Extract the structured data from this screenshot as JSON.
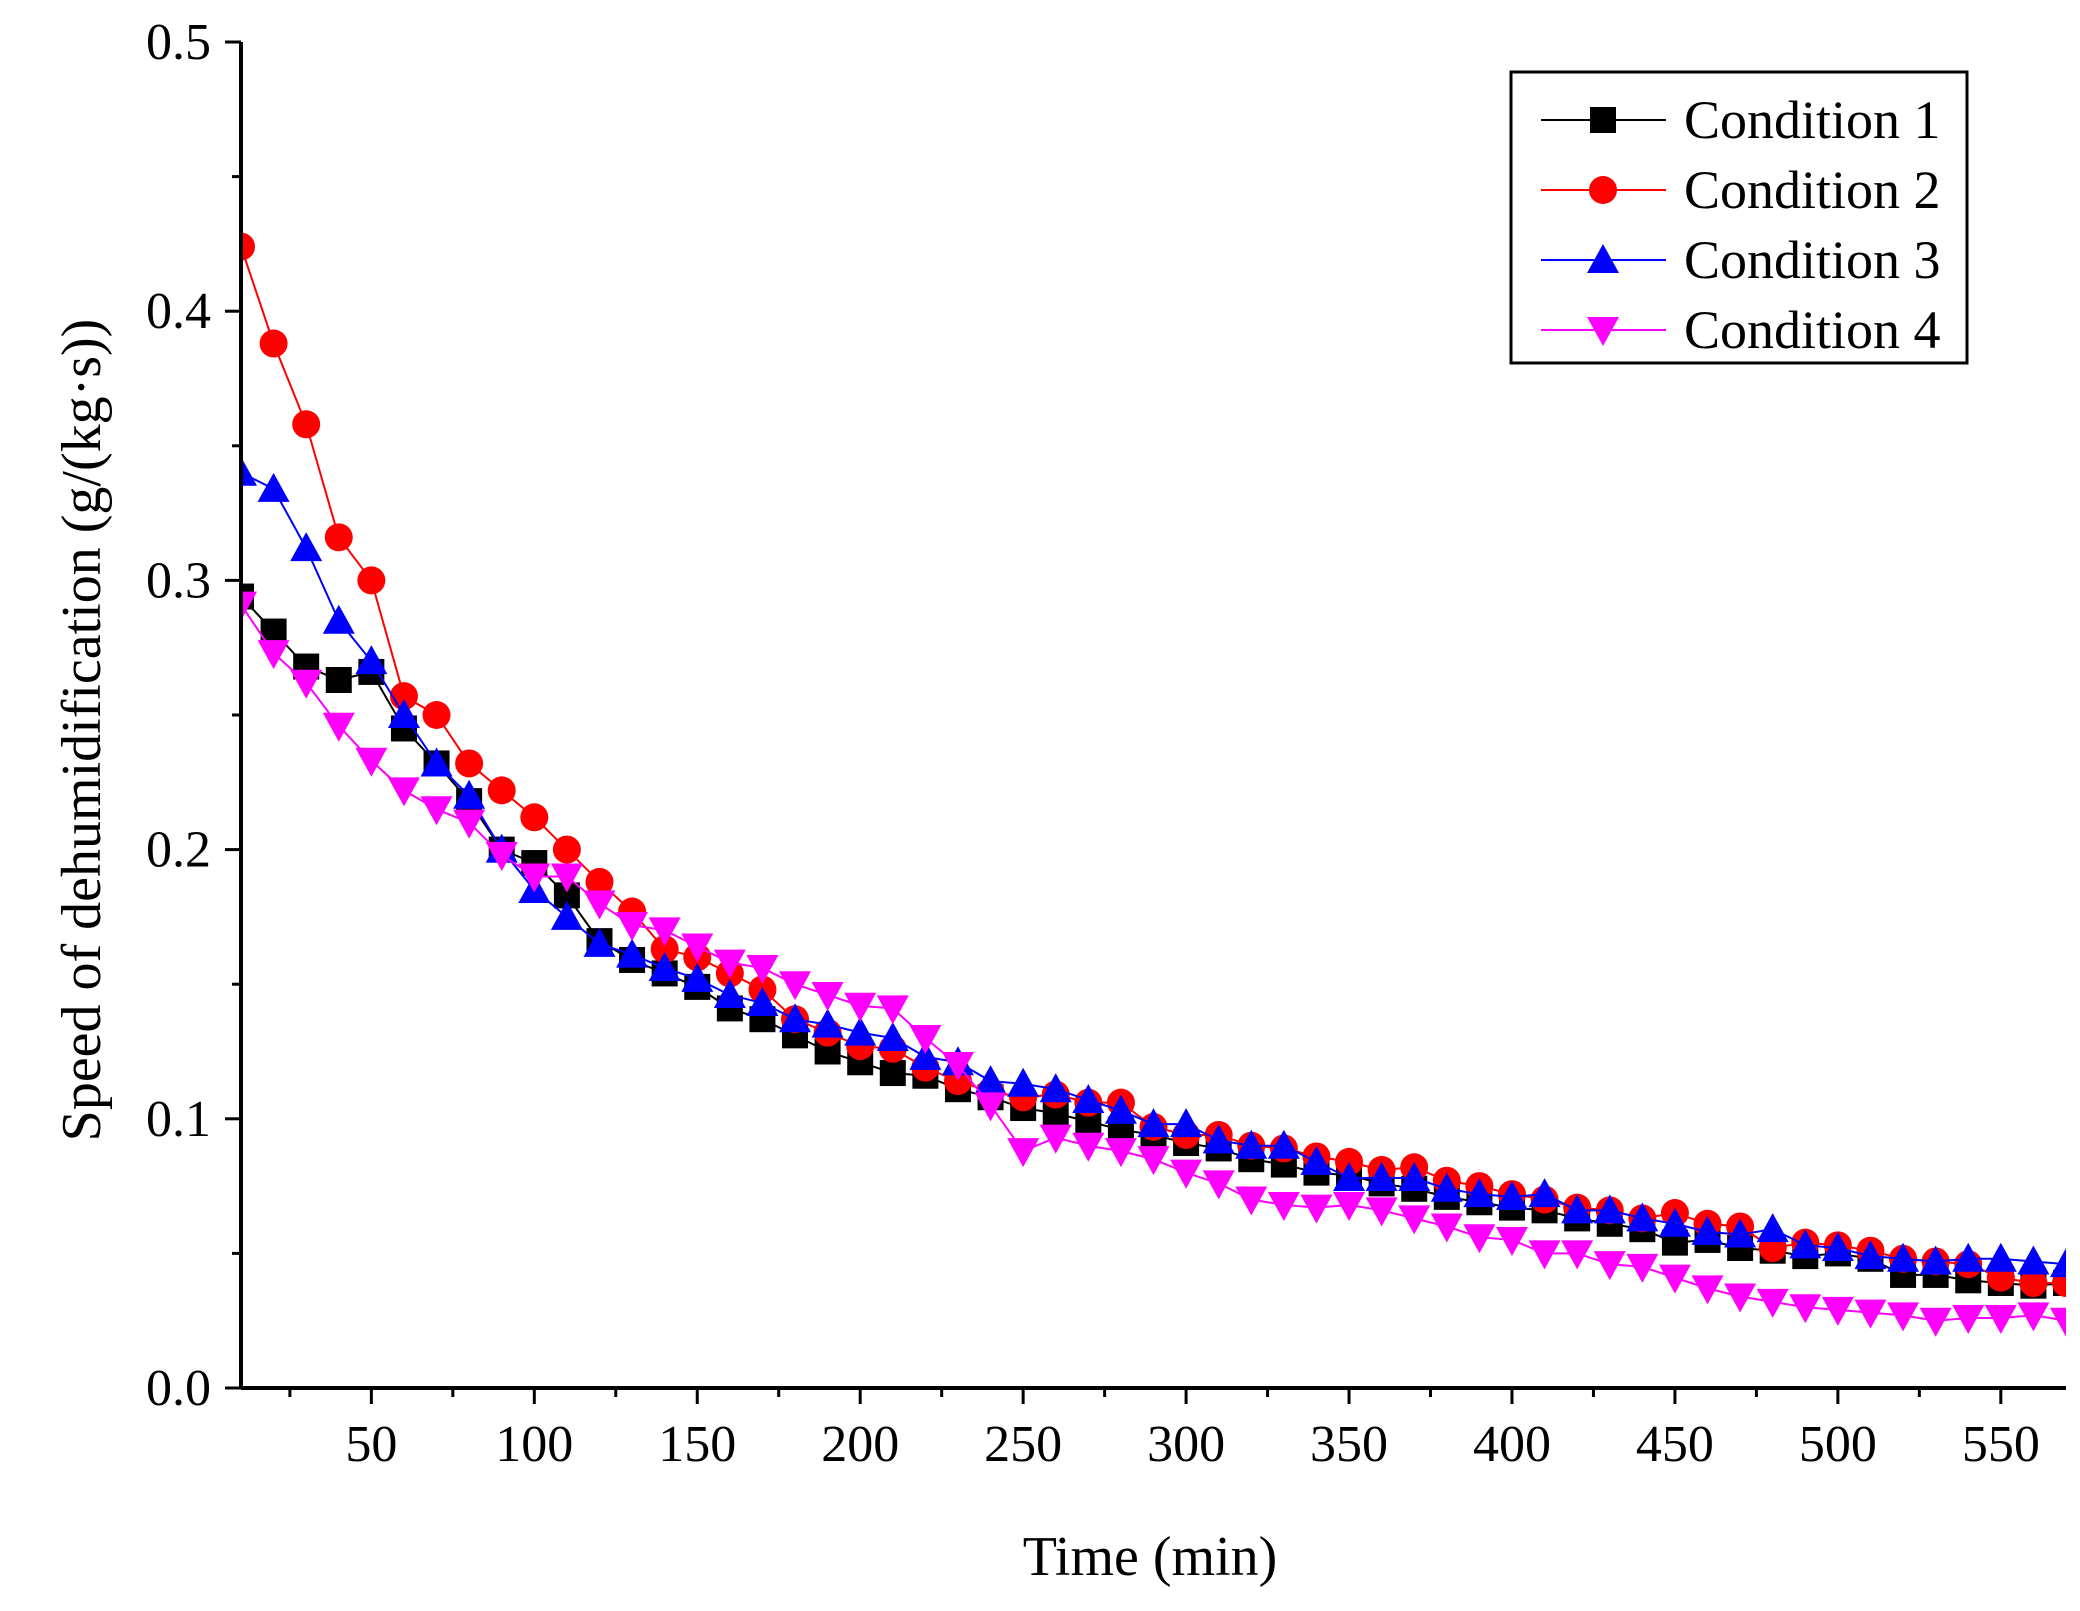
{
  "chart_data": {
    "type": "line",
    "title": "",
    "xlabel": "Time (min)",
    "ylabel": "Speed of dehumidification (g/(kg·s))",
    "xlim": [
      10,
      570
    ],
    "ylim": [
      0.0,
      0.5
    ],
    "xticks": [
      50,
      100,
      150,
      200,
      250,
      300,
      350,
      400,
      450,
      500,
      550
    ],
    "yticks": [
      0.0,
      0.1,
      0.2,
      0.3,
      0.4,
      0.5
    ],
    "xtick_labels": [
      "50",
      "100",
      "150",
      "200",
      "250",
      "300",
      "350",
      "400",
      "450",
      "500",
      "550"
    ],
    "ytick_labels": [
      "0.0",
      "0.1",
      "0.2",
      "0.3",
      "0.4",
      "0.5"
    ],
    "legend_position": "top-right",
    "x": [
      10,
      20,
      30,
      40,
      50,
      60,
      70,
      80,
      90,
      100,
      110,
      120,
      130,
      140,
      150,
      160,
      170,
      180,
      190,
      200,
      210,
      220,
      230,
      240,
      250,
      260,
      270,
      280,
      290,
      300,
      310,
      320,
      330,
      340,
      350,
      360,
      370,
      380,
      390,
      400,
      410,
      420,
      430,
      440,
      450,
      460,
      470,
      480,
      490,
      500,
      510,
      520,
      530,
      540,
      550,
      560,
      570
    ],
    "series": [
      {
        "name": "Condition 1",
        "color": "#000000",
        "marker": "square",
        "values": [
          0.294,
          0.281,
          0.268,
          0.263,
          0.266,
          0.245,
          0.232,
          0.218,
          0.2,
          0.195,
          0.183,
          0.166,
          0.159,
          0.154,
          0.149,
          0.141,
          0.137,
          0.131,
          0.125,
          0.121,
          0.117,
          0.116,
          0.111,
          0.108,
          0.104,
          0.102,
          0.099,
          0.096,
          0.094,
          0.091,
          0.089,
          0.085,
          0.083,
          0.08,
          0.079,
          0.076,
          0.074,
          0.071,
          0.069,
          0.067,
          0.066,
          0.063,
          0.061,
          0.059,
          0.054,
          0.055,
          0.052,
          0.051,
          0.049,
          0.05,
          0.048,
          0.042,
          0.042,
          0.04,
          0.039,
          0.038,
          0.039
        ]
      },
      {
        "name": "Condition 2",
        "color": "#ff0000",
        "marker": "circle",
        "values": [
          0.424,
          0.388,
          0.358,
          0.316,
          0.3,
          0.257,
          0.25,
          0.232,
          0.222,
          0.212,
          0.2,
          0.188,
          0.177,
          0.163,
          0.16,
          0.154,
          0.148,
          0.137,
          0.132,
          0.127,
          0.126,
          0.119,
          0.114,
          0.11,
          0.108,
          0.109,
          0.106,
          0.106,
          0.097,
          0.094,
          0.094,
          0.09,
          0.089,
          0.086,
          0.084,
          0.081,
          0.082,
          0.077,
          0.075,
          0.072,
          0.07,
          0.067,
          0.066,
          0.063,
          0.065,
          0.061,
          0.06,
          0.052,
          0.054,
          0.053,
          0.051,
          0.048,
          0.047,
          0.046,
          0.041,
          0.039,
          0.039
        ]
      },
      {
        "name": "Condition 3",
        "color": "#0000ff",
        "marker": "triangle-up",
        "values": [
          0.34,
          0.334,
          0.312,
          0.285,
          0.27,
          0.25,
          0.232,
          0.22,
          0.2,
          0.185,
          0.175,
          0.165,
          0.161,
          0.156,
          0.152,
          0.146,
          0.143,
          0.137,
          0.135,
          0.132,
          0.13,
          0.123,
          0.121,
          0.114,
          0.113,
          0.111,
          0.107,
          0.103,
          0.098,
          0.098,
          0.092,
          0.09,
          0.09,
          0.084,
          0.078,
          0.078,
          0.078,
          0.074,
          0.072,
          0.071,
          0.072,
          0.066,
          0.066,
          0.063,
          0.061,
          0.058,
          0.057,
          0.059,
          0.053,
          0.052,
          0.049,
          0.048,
          0.047,
          0.048,
          0.048,
          0.047,
          0.046
        ]
      },
      {
        "name": "Condition 4",
        "color": "#ff00ff",
        "marker": "triangle-down",
        "values": [
          0.291,
          0.273,
          0.262,
          0.246,
          0.233,
          0.222,
          0.215,
          0.21,
          0.198,
          0.19,
          0.19,
          0.18,
          0.172,
          0.17,
          0.164,
          0.158,
          0.156,
          0.15,
          0.146,
          0.142,
          0.141,
          0.13,
          0.12,
          0.105,
          0.088,
          0.093,
          0.09,
          0.088,
          0.085,
          0.08,
          0.076,
          0.07,
          0.068,
          0.067,
          0.068,
          0.066,
          0.063,
          0.06,
          0.056,
          0.055,
          0.05,
          0.05,
          0.046,
          0.045,
          0.041,
          0.037,
          0.034,
          0.032,
          0.03,
          0.029,
          0.028,
          0.027,
          0.025,
          0.026,
          0.026,
          0.027,
          0.025
        ]
      }
    ]
  }
}
